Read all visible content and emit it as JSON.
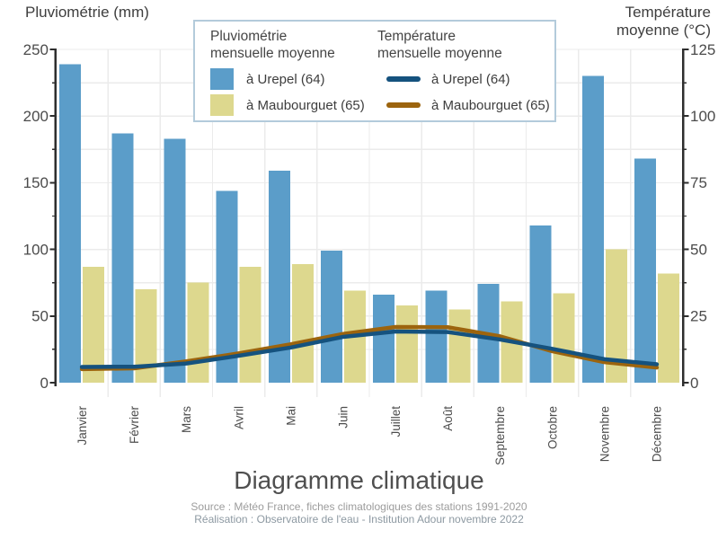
{
  "axis_left": {
    "title": "Pluviométrie (mm)",
    "ticks": [
      0,
      50,
      100,
      150,
      200,
      250
    ]
  },
  "axis_right": {
    "title_lines": [
      "Température",
      "moyenne (°C)"
    ],
    "ticks": [
      0,
      25,
      50,
      75,
      100,
      125
    ]
  },
  "legend": {
    "precipitation": {
      "title_lines": [
        "Pluviométrie",
        "mensuelle moyenne"
      ],
      "items": [
        {
          "label": "à Urepel (64)",
          "swatch": "square",
          "color": "#5b9dc9"
        },
        {
          "label": "à Maubourguet (65)",
          "swatch": "square",
          "color": "#ddd88e"
        }
      ]
    },
    "temperature": {
      "title_lines": [
        "Température",
        "mensuelle moyenne"
      ],
      "items": [
        {
          "label": "à Urepel (64)",
          "swatch": "line",
          "color": "#15527e"
        },
        {
          "label": "à Maubourguet (65)",
          "swatch": "line",
          "color": "#9c640e"
        }
      ]
    }
  },
  "title": "Diagramme climatique",
  "footer": {
    "source": "Source : Météo France, fiches climatologiques des stations 1991-2020",
    "realisation": "Réalisation : Observatoire de l'eau - Institution Adour novembre 2022"
  },
  "chart_data": {
    "type": "bar",
    "subtype": "dual-axis climate diagram (bars = precipitation mm, lines = temperature °C)",
    "title": "Diagramme climatique",
    "categories": [
      "Janvier",
      "Février",
      "Mars",
      "Avril",
      "Mai",
      "Juin",
      "Juillet",
      "Août",
      "Septembre",
      "Octobre",
      "Novembre",
      "Décembre"
    ],
    "series": [
      {
        "name": "Pluviométrie mensuelle moyenne à Urepel (64)",
        "kind": "bar",
        "axis": "left",
        "color": "#5b9dc9",
        "values": [
          239,
          187,
          183,
          144,
          159,
          99,
          66,
          69,
          74,
          118,
          230,
          168
        ]
      },
      {
        "name": "Pluviométrie mensuelle moyenne à Maubourguet (65)",
        "kind": "bar",
        "axis": "left",
        "color": "#ddd88e",
        "values": [
          87,
          70,
          75,
          87,
          89,
          69,
          58,
          55,
          61,
          67,
          100,
          82
        ]
      },
      {
        "name": "Température mensuelle moyenne à Urepel (64)",
        "kind": "line",
        "axis": "right",
        "color": "#15527e",
        "values": [
          5.9,
          6.0,
          7.2,
          10.1,
          13.2,
          17.2,
          19.2,
          19.0,
          16.2,
          12.7,
          8.8,
          6.9
        ]
      },
      {
        "name": "Température mensuelle moyenne à Maubourguet (65)",
        "kind": "line",
        "axis": "right",
        "color": "#9c640e",
        "values": [
          5.1,
          5.4,
          8.0,
          11.0,
          14.4,
          18.3,
          20.9,
          20.8,
          17.4,
          11.8,
          7.7,
          5.7
        ]
      }
    ],
    "ylabel_left": "Pluviométrie (mm)",
    "ylabel_right": "Température moyenne (°C)",
    "ylim_left": [
      0,
      250
    ],
    "ylim_right": [
      0,
      125
    ],
    "grid": true,
    "grid_interval_mm": 25,
    "legend_position": "top"
  }
}
